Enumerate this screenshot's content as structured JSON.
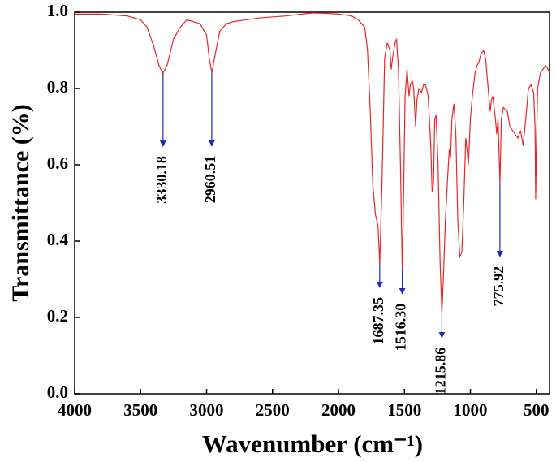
{
  "chart_data": {
    "type": "line",
    "x_label": "Wavenumber (cm⁻¹)",
    "y_label": "Transmittance (%)",
    "color": "#e8262a",
    "arrow_color": "#1f2db0",
    "xlim": [
      4000,
      400
    ],
    "ylim": [
      0,
      1
    ],
    "xticks": [
      4000,
      3500,
      3000,
      2500,
      2000,
      1500,
      1000,
      500
    ],
    "yticks": [
      {
        "value": 0,
        "label": "0.0"
      },
      {
        "value": 0.2,
        "label": "0.2"
      },
      {
        "value": 0.4,
        "label": "0.4"
      },
      {
        "value": 0.6,
        "label": "0.6"
      },
      {
        "value": 0.8,
        "label": "0.8"
      },
      {
        "value": 1,
        "label": "1.0"
      }
    ],
    "x": [
      4000,
      3800,
      3600,
      3500,
      3450,
      3400,
      3360,
      3330,
      3300,
      3250,
      3200,
      3150,
      3100,
      3050,
      3000,
      2980,
      2960,
      2940,
      2900,
      2850,
      2800,
      2600,
      2400,
      2200,
      2100,
      2000,
      1900,
      1850,
      1800,
      1780,
      1760,
      1740,
      1720,
      1700,
      1687,
      1670,
      1650,
      1630,
      1610,
      1600,
      1590,
      1570,
      1560,
      1545,
      1530,
      1516,
      1505,
      1495,
      1480,
      1465,
      1455,
      1440,
      1430,
      1415,
      1405,
      1390,
      1370,
      1355,
      1340,
      1320,
      1300,
      1290,
      1280,
      1270,
      1260,
      1245,
      1230,
      1216,
      1205,
      1190,
      1175,
      1160,
      1150,
      1140,
      1125,
      1110,
      1095,
      1080,
      1065,
      1050,
      1035,
      1025,
      1015,
      1000,
      985,
      965,
      950,
      935,
      920,
      900,
      885,
      870,
      860,
      850,
      840,
      830,
      820,
      810,
      800,
      790,
      776,
      765,
      750,
      720,
      700,
      680,
      660,
      640,
      620,
      600,
      580,
      560,
      540,
      520,
      510,
      505,
      500,
      490,
      470,
      450,
      430,
      410,
      400
    ],
    "values": [
      0.995,
      0.995,
      0.99,
      0.98,
      0.96,
      0.91,
      0.86,
      0.84,
      0.86,
      0.93,
      0.96,
      0.98,
      0.975,
      0.97,
      0.94,
      0.88,
      0.84,
      0.88,
      0.95,
      0.97,
      0.975,
      0.985,
      0.99,
      0.998,
      0.997,
      0.995,
      0.99,
      0.98,
      0.96,
      0.9,
      0.75,
      0.55,
      0.47,
      0.44,
      0.34,
      0.55,
      0.88,
      0.92,
      0.9,
      0.85,
      0.88,
      0.92,
      0.93,
      0.85,
      0.6,
      0.32,
      0.55,
      0.78,
      0.85,
      0.78,
      0.81,
      0.82,
      0.8,
      0.7,
      0.77,
      0.8,
      0.79,
      0.81,
      0.81,
      0.78,
      0.65,
      0.53,
      0.55,
      0.72,
      0.73,
      0.6,
      0.35,
      0.21,
      0.3,
      0.45,
      0.55,
      0.64,
      0.62,
      0.72,
      0.76,
      0.68,
      0.45,
      0.36,
      0.37,
      0.5,
      0.67,
      0.64,
      0.6,
      0.72,
      0.78,
      0.84,
      0.86,
      0.87,
      0.89,
      0.9,
      0.88,
      0.82,
      0.78,
      0.74,
      0.77,
      0.78,
      0.75,
      0.72,
      0.68,
      0.72,
      0.55,
      0.72,
      0.75,
      0.74,
      0.7,
      0.69,
      0.68,
      0.67,
      0.69,
      0.65,
      0.72,
      0.8,
      0.81,
      0.79,
      0.7,
      0.51,
      0.64,
      0.8,
      0.84,
      0.85,
      0.86,
      0.85,
      0.84
    ],
    "annotations": [
      {
        "value": 3330.18,
        "label": "3330.18"
      },
      {
        "value": 2960.51,
        "label": "2960.51"
      },
      {
        "value": 1687.35,
        "label": "1687.35"
      },
      {
        "value": 1516.3,
        "label": "1516.30"
      },
      {
        "value": 1215.86,
        "label": "1215.86"
      },
      {
        "value": 775.92,
        "label": "775.92"
      }
    ]
  }
}
